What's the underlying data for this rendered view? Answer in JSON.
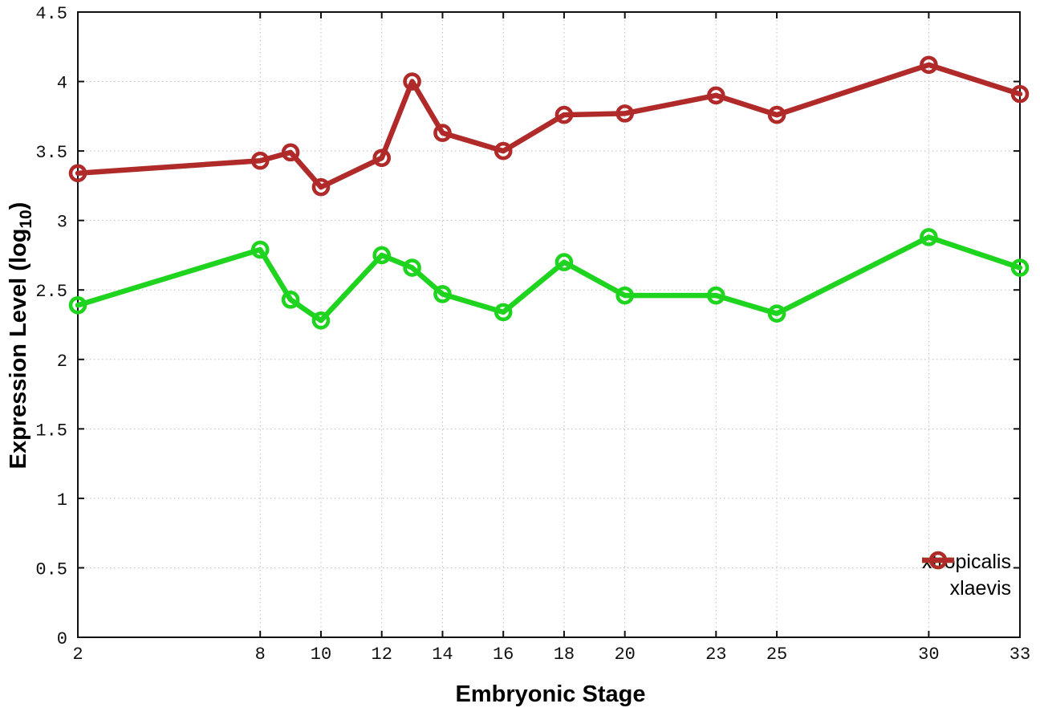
{
  "chart_data": {
    "type": "line",
    "x": [
      2,
      8,
      9,
      10,
      12,
      13,
      14,
      16,
      18,
      20,
      23,
      25,
      30,
      33
    ],
    "series": [
      {
        "name": "xtropicalis",
        "color": "#1fd41f",
        "values": [
          2.39,
          2.79,
          2.43,
          2.28,
          2.75,
          2.66,
          2.47,
          2.34,
          2.7,
          2.46,
          2.46,
          2.33,
          2.88,
          2.66
        ]
      },
      {
        "name": "xlaevis",
        "color": "#b02a2a",
        "values": [
          3.34,
          3.43,
          3.49,
          3.24,
          3.45,
          4.0,
          3.63,
          3.5,
          3.76,
          3.77,
          3.9,
          3.76,
          4.12,
          3.91
        ]
      }
    ],
    "title": "",
    "xlabel": "Embryonic Stage",
    "ylabel": "Expression Level (log10)",
    "ylabel_parts": {
      "prefix": "Expression Level (log",
      "sub": "10",
      "suffix": ")"
    },
    "xlim": [
      2,
      33
    ],
    "ylim": [
      0,
      4.5
    ],
    "xticks": {
      "values": [
        2,
        8,
        10,
        12,
        14,
        16,
        18,
        20,
        23,
        25,
        30,
        33
      ],
      "labels": [
        "2",
        "8",
        "10",
        "12",
        "14",
        "16",
        "18",
        "20",
        "23",
        "25",
        "30",
        "33"
      ]
    },
    "yticks": {
      "values": [
        0,
        0.5,
        1,
        1.5,
        2,
        2.5,
        3,
        3.5,
        4,
        4.5
      ],
      "labels": [
        "0",
        "0.5",
        "1",
        "1.5",
        "2",
        "2.5",
        "3",
        "3.5",
        "4",
        "4.5"
      ]
    },
    "grid": true,
    "legend_position": "bottom-right",
    "colors": {
      "border": "#111111",
      "grid": "#bdbdbd",
      "background": "#ffffff"
    }
  }
}
